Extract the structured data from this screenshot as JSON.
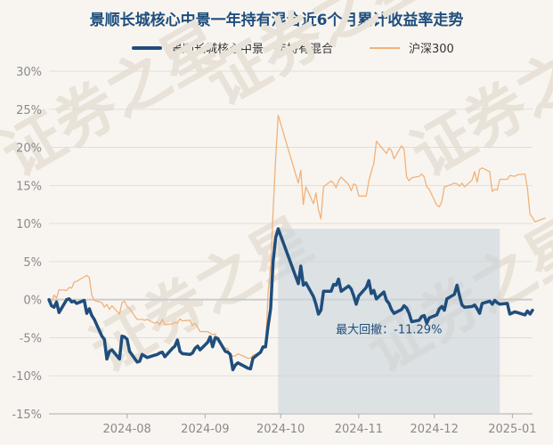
{
  "chart_data": {
    "type": "line",
    "title": "景顺长城核心中景一年持有混合近6个月累计收益率走势",
    "y_ticks": [
      "30%",
      "25%",
      "20%",
      "15%",
      "10%",
      "5%",
      "0%",
      "-5%",
      "-10%",
      "-15%"
    ],
    "x_ticks": [
      "2024-08",
      "2024-09",
      "2024-10",
      "2024-11",
      "2024-12",
      "2025-01"
    ],
    "ylim": [
      -15,
      30
    ],
    "xlim": [
      "2024-07-01",
      "2025-01-09"
    ],
    "grid": true,
    "legend_position": "top-center",
    "watermark": "证券之星",
    "annotation": {
      "label": "最大回撤：-11.29%",
      "start_x": "2024-09-30",
      "end_x": "2024-12-27",
      "top_y": 9.3,
      "bottom_y": -15
    },
    "series": [
      {
        "name": "景顺长城核心中景一年持有混合",
        "color": "#1f4e7d",
        "points": [
          [
            "2024-07-01",
            0
          ],
          [
            "2024-07-02",
            -0.8
          ],
          [
            "2024-07-03",
            -1
          ],
          [
            "2024-07-04",
            -0.3
          ],
          [
            "2024-07-05",
            -1.7
          ],
          [
            "2024-07-08",
            0
          ],
          [
            "2024-07-09",
            0.1
          ],
          [
            "2024-07-10",
            -0.3
          ],
          [
            "2024-07-11",
            -0.2
          ],
          [
            "2024-07-12",
            -0.5
          ],
          [
            "2024-07-15",
            -0.1
          ],
          [
            "2024-07-16",
            -1.8
          ],
          [
            "2024-07-17",
            -1.2
          ],
          [
            "2024-07-18",
            -2.1
          ],
          [
            "2024-07-19",
            -2.6
          ],
          [
            "2024-07-22",
            -4.8
          ],
          [
            "2024-07-23",
            -5.2
          ],
          [
            "2024-07-24",
            -7.8
          ],
          [
            "2024-07-25",
            -6.8
          ],
          [
            "2024-07-26",
            -6.6
          ],
          [
            "2024-07-29",
            -7.8
          ],
          [
            "2024-07-30",
            -4.8
          ],
          [
            "2024-07-31",
            -4.9
          ],
          [
            "2024-08-01",
            -5.2
          ],
          [
            "2024-08-02",
            -6.8
          ],
          [
            "2024-08-05",
            -8.2
          ],
          [
            "2024-08-06",
            -8.1
          ],
          [
            "2024-08-07",
            -7.2
          ],
          [
            "2024-08-08",
            -7.4
          ],
          [
            "2024-08-09",
            -7.6
          ],
          [
            "2024-08-12",
            -7.3
          ],
          [
            "2024-08-13",
            -7.2
          ],
          [
            "2024-08-14",
            -7
          ],
          [
            "2024-08-15",
            -6.9
          ],
          [
            "2024-08-16",
            -7.5
          ],
          [
            "2024-08-19",
            -6.4
          ],
          [
            "2024-08-20",
            -6.1
          ],
          [
            "2024-08-21",
            -5.3
          ],
          [
            "2024-08-22",
            -6.8
          ],
          [
            "2024-08-23",
            -7.1
          ],
          [
            "2024-08-26",
            -7.2
          ],
          [
            "2024-08-27",
            -7
          ],
          [
            "2024-08-28",
            -6.4
          ],
          [
            "2024-08-29",
            -6.1
          ],
          [
            "2024-08-30",
            -6.6
          ],
          [
            "2024-09-02",
            -5.6
          ],
          [
            "2024-09-03",
            -4.9
          ],
          [
            "2024-09-04",
            -6.2
          ],
          [
            "2024-09-05",
            -5
          ],
          [
            "2024-09-06",
            -5.1
          ],
          [
            "2024-09-09",
            -6.8
          ],
          [
            "2024-09-10",
            -6.9
          ],
          [
            "2024-09-11",
            -7.2
          ],
          [
            "2024-09-12",
            -9.2
          ],
          [
            "2024-09-13",
            -8.6
          ],
          [
            "2024-09-14",
            -8.3
          ],
          [
            "2024-09-18",
            -9
          ],
          [
            "2024-09-19",
            -9.1
          ],
          [
            "2024-09-20",
            -7.7
          ],
          [
            "2024-09-23",
            -6.9
          ],
          [
            "2024-09-24",
            -6.2
          ],
          [
            "2024-09-25",
            -6.2
          ],
          [
            "2024-09-26",
            -3.5
          ],
          [
            "2024-09-27",
            -1.2
          ],
          [
            "2024-09-28",
            5
          ],
          [
            "2024-09-29",
            8.1
          ],
          [
            "2024-09-30",
            9.3
          ],
          [
            "2024-10-08",
            2.1
          ],
          [
            "2024-10-09",
            4.4
          ],
          [
            "2024-10-10",
            1.9
          ],
          [
            "2024-10-11",
            2.2
          ],
          [
            "2024-10-14",
            0.4
          ],
          [
            "2024-10-15",
            -0.6
          ],
          [
            "2024-10-16",
            -1.9
          ],
          [
            "2024-10-17",
            -1.4
          ],
          [
            "2024-10-18",
            1.1
          ],
          [
            "2024-10-21",
            1.1
          ],
          [
            "2024-10-22",
            2
          ],
          [
            "2024-10-23",
            1.9
          ],
          [
            "2024-10-24",
            2.7
          ],
          [
            "2024-10-25",
            1.1
          ],
          [
            "2024-10-28",
            1.8
          ],
          [
            "2024-10-29",
            1.4
          ],
          [
            "2024-10-30",
            0.5
          ],
          [
            "2024-10-31",
            -0.6
          ],
          [
            "2024-11-01",
            0.5
          ],
          [
            "2024-11-04",
            1.6
          ],
          [
            "2024-11-05",
            2.5
          ],
          [
            "2024-11-06",
            0.8
          ],
          [
            "2024-11-07",
            1.2
          ],
          [
            "2024-11-08",
            0.1
          ],
          [
            "2024-11-11",
            1
          ],
          [
            "2024-11-12",
            -0.1
          ],
          [
            "2024-11-13",
            -0.5
          ],
          [
            "2024-11-14",
            -1.3
          ],
          [
            "2024-11-15",
            -1.8
          ],
          [
            "2024-11-18",
            -1.3
          ],
          [
            "2024-11-19",
            -0.8
          ],
          [
            "2024-11-20",
            -1.1
          ],
          [
            "2024-11-21",
            -1.8
          ],
          [
            "2024-11-22",
            -2.9
          ],
          [
            "2024-11-25",
            -2.7
          ],
          [
            "2024-11-26",
            -2.2
          ],
          [
            "2024-11-27",
            -2.1
          ],
          [
            "2024-11-28",
            -3.1
          ],
          [
            "2024-11-29",
            -2.4
          ],
          [
            "2024-12-02",
            -2
          ],
          [
            "2024-12-03",
            -1.2
          ],
          [
            "2024-12-04",
            -0.9
          ],
          [
            "2024-12-05",
            -1.4
          ],
          [
            "2024-12-06",
            0.1
          ],
          [
            "2024-12-09",
            0.7
          ],
          [
            "2024-12-10",
            1.9
          ],
          [
            "2024-12-11",
            0.5
          ],
          [
            "2024-12-12",
            -0.7
          ],
          [
            "2024-12-13",
            -1
          ],
          [
            "2024-12-16",
            -0.9
          ],
          [
            "2024-12-17",
            -0.7
          ],
          [
            "2024-12-18",
            -1.2
          ],
          [
            "2024-12-19",
            -1.8
          ],
          [
            "2024-12-20",
            -0.5
          ],
          [
            "2024-12-23",
            -0.2
          ],
          [
            "2024-12-24",
            -0.6
          ],
          [
            "2024-12-25",
            -0.1
          ],
          [
            "2024-12-26",
            -0.4
          ],
          [
            "2024-12-27",
            -0.6
          ],
          [
            "2024-12-30",
            -0.5
          ],
          [
            "2024-12-31",
            -1.9
          ],
          [
            "2025-01-02",
            -1.6
          ],
          [
            "2025-01-03",
            -1.7
          ],
          [
            "2025-01-06",
            -2
          ],
          [
            "2025-01-07",
            -1.5
          ],
          [
            "2025-01-08",
            -1.9
          ],
          [
            "2025-01-09",
            -1.4
          ]
        ]
      },
      {
        "name": "沪深300",
        "color": "#f0b27a",
        "points": [
          [
            "2024-07-01",
            0
          ],
          [
            "2024-07-02",
            -0.3
          ],
          [
            "2024-07-03",
            0.6
          ],
          [
            "2024-07-04",
            0.2
          ],
          [
            "2024-07-05",
            1.3
          ],
          [
            "2024-07-08",
            1.2
          ],
          [
            "2024-07-09",
            1.6
          ],
          [
            "2024-07-10",
            1.5
          ],
          [
            "2024-07-11",
            2.3
          ],
          [
            "2024-07-12",
            2.4
          ],
          [
            "2024-07-15",
            3
          ],
          [
            "2024-07-16",
            3.2
          ],
          [
            "2024-07-17",
            2.9
          ],
          [
            "2024-07-18",
            0.6
          ],
          [
            "2024-07-19",
            -0.1
          ],
          [
            "2024-07-22",
            -0.4
          ],
          [
            "2024-07-23",
            -1
          ],
          [
            "2024-07-24",
            -0.6
          ],
          [
            "2024-07-25",
            -1.3
          ],
          [
            "2024-07-26",
            -0.8
          ],
          [
            "2024-07-29",
            -1.9
          ],
          [
            "2024-07-30",
            -0.4
          ],
          [
            "2024-07-31",
            -0.2
          ],
          [
            "2024-08-01",
            -0.9
          ],
          [
            "2024-08-02",
            -1.2
          ],
          [
            "2024-08-05",
            -2.6
          ],
          [
            "2024-08-06",
            -2.6
          ],
          [
            "2024-08-07",
            -2.6
          ],
          [
            "2024-08-08",
            -2.7
          ],
          [
            "2024-08-09",
            -2.6
          ],
          [
            "2024-08-12",
            -3.1
          ],
          [
            "2024-08-13",
            -2.9
          ],
          [
            "2024-08-14",
            -3.3
          ],
          [
            "2024-08-15",
            -2.6
          ],
          [
            "2024-08-16",
            -3.3
          ],
          [
            "2024-08-19",
            -3.2
          ],
          [
            "2024-08-20",
            -3
          ],
          [
            "2024-08-21",
            -3.1
          ],
          [
            "2024-08-22",
            -2.5
          ],
          [
            "2024-08-23",
            -2.8
          ],
          [
            "2024-08-26",
            -2.7
          ],
          [
            "2024-08-27",
            -3.4
          ],
          [
            "2024-08-28",
            -3.1
          ],
          [
            "2024-08-29",
            -3.6
          ],
          [
            "2024-08-30",
            -4.2
          ],
          [
            "2024-09-02",
            -4.2
          ],
          [
            "2024-09-03",
            -4.4
          ],
          [
            "2024-09-04",
            -4.6
          ],
          [
            "2024-09-05",
            -4.5
          ],
          [
            "2024-09-06",
            -5.5
          ],
          [
            "2024-09-09",
            -6.4
          ],
          [
            "2024-09-10",
            -6.4
          ],
          [
            "2024-09-11",
            -7.8
          ],
          [
            "2024-09-12",
            -7.4
          ],
          [
            "2024-09-13",
            -7.4
          ],
          [
            "2024-09-14",
            -7.1
          ],
          [
            "2024-09-18",
            -7.7
          ],
          [
            "2024-09-19",
            -7.7
          ],
          [
            "2024-09-20",
            -7.3
          ],
          [
            "2024-09-23",
            -6.9
          ],
          [
            "2024-09-24",
            -6.5
          ],
          [
            "2024-09-25",
            -6.2
          ],
          [
            "2024-09-26",
            0.8
          ],
          [
            "2024-09-27",
            4.2
          ],
          [
            "2024-09-28",
            11.6
          ],
          [
            "2024-09-29",
            18.4
          ],
          [
            "2024-09-30",
            24.2
          ],
          [
            "2024-10-08",
            15.3
          ],
          [
            "2024-10-09",
            17
          ],
          [
            "2024-10-10",
            12.5
          ],
          [
            "2024-10-11",
            14.8
          ],
          [
            "2024-10-14",
            12.6
          ],
          [
            "2024-10-15",
            14
          ],
          [
            "2024-10-16",
            11.8
          ],
          [
            "2024-10-17",
            10.6
          ],
          [
            "2024-10-18",
            14.8
          ],
          [
            "2024-10-21",
            15.6
          ],
          [
            "2024-10-22",
            15.3
          ],
          [
            "2024-10-23",
            14.7
          ],
          [
            "2024-10-24",
            15.6
          ],
          [
            "2024-10-25",
            16.1
          ],
          [
            "2024-10-28",
            15.1
          ],
          [
            "2024-10-29",
            14.3
          ],
          [
            "2024-10-30",
            15.2
          ],
          [
            "2024-10-31",
            15
          ],
          [
            "2024-11-01",
            13.6
          ],
          [
            "2024-11-04",
            13.6
          ],
          [
            "2024-11-05",
            15.6
          ],
          [
            "2024-11-06",
            16.8
          ],
          [
            "2024-11-07",
            17.9
          ],
          [
            "2024-11-08",
            20.8
          ],
          [
            "2024-11-11",
            19.6
          ],
          [
            "2024-11-12",
            19.2
          ],
          [
            "2024-11-13",
            19.9
          ],
          [
            "2024-11-14",
            19.6
          ],
          [
            "2024-11-15",
            18.5
          ],
          [
            "2024-11-18",
            20.2
          ],
          [
            "2024-11-19",
            19.7
          ],
          [
            "2024-11-20",
            16.1
          ],
          [
            "2024-11-21",
            15.6
          ],
          [
            "2024-11-22",
            16
          ],
          [
            "2024-11-25",
            16.2
          ],
          [
            "2024-11-26",
            16.5
          ],
          [
            "2024-11-27",
            16.1
          ],
          [
            "2024-11-28",
            14.8
          ],
          [
            "2024-11-29",
            14.5
          ],
          [
            "2024-12-02",
            12.4
          ],
          [
            "2024-12-03",
            12.2
          ],
          [
            "2024-12-04",
            12.9
          ],
          [
            "2024-12-05",
            14.8
          ],
          [
            "2024-12-06",
            14.9
          ],
          [
            "2024-12-09",
            15.3
          ],
          [
            "2024-12-10",
            15.2
          ],
          [
            "2024-12-11",
            14.9
          ],
          [
            "2024-12-12",
            15.3
          ],
          [
            "2024-12-13",
            14.8
          ],
          [
            "2024-12-16",
            15.7
          ],
          [
            "2024-12-17",
            16.8
          ],
          [
            "2024-12-18",
            15.4
          ],
          [
            "2024-12-19",
            17.1
          ],
          [
            "2024-12-20",
            17.3
          ],
          [
            "2024-12-23",
            16.8
          ],
          [
            "2024-12-24",
            14.2
          ],
          [
            "2024-12-25",
            14.5
          ],
          [
            "2024-12-26",
            14.4
          ],
          [
            "2024-12-27",
            15.8
          ],
          [
            "2024-12-30",
            15.8
          ],
          [
            "2024-12-31",
            16.3
          ],
          [
            "2025-01-02",
            16.2
          ],
          [
            "2025-01-03",
            16.4
          ],
          [
            "2025-01-06",
            16.5
          ],
          [
            "2025-01-07",
            14.6
          ],
          [
            "2025-01-08",
            11.2
          ],
          [
            "2025-01-09",
            10.8
          ],
          [
            "2025-01-10",
            10.2
          ],
          [
            "2025-01-13",
            10.6
          ],
          [
            "2025-01-14",
            10.7
          ]
        ]
      }
    ]
  }
}
